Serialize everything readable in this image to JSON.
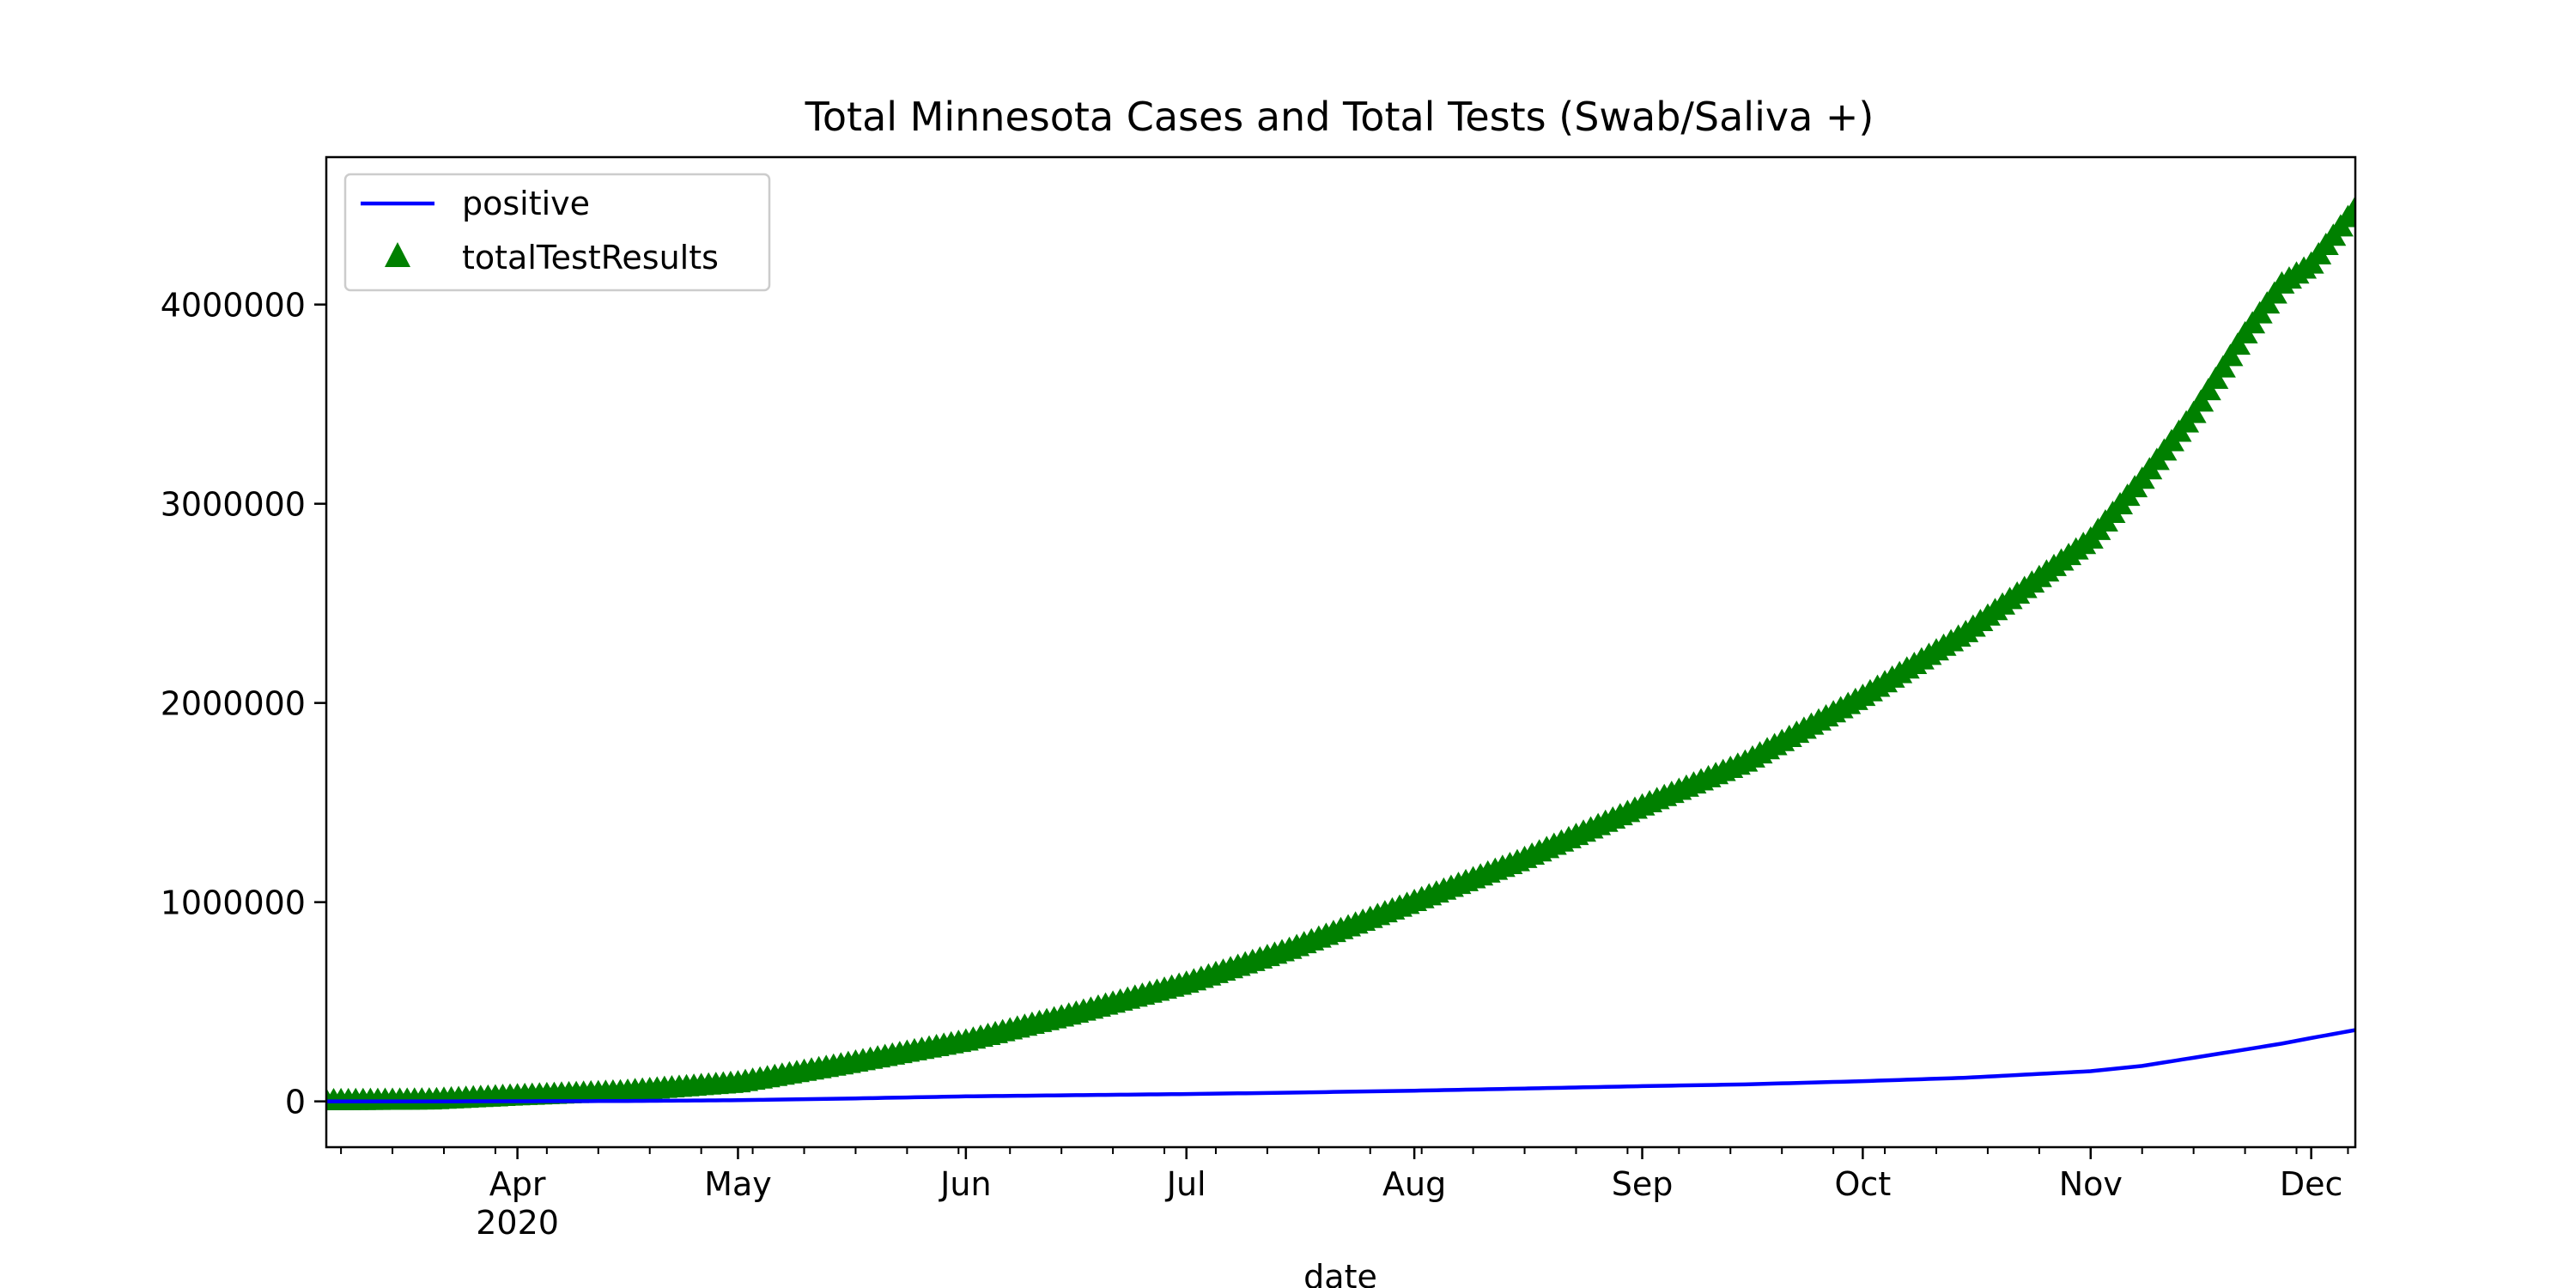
{
  "chart_data": {
    "type": "line",
    "title": "Total Minnesota Cases and Total Tests (Swab/Saliva +)",
    "xlabel": "date",
    "ylabel": "",
    "x_range": [
      "2020-03-06",
      "2020-12-07"
    ],
    "ylim": [
      -230000,
      4740000
    ],
    "x_ticks": [
      {
        "date": "2020-04-01",
        "label": "Apr",
        "sublabel": "2020"
      },
      {
        "date": "2020-05-01",
        "label": "May",
        "sublabel": ""
      },
      {
        "date": "2020-06-01",
        "label": "Jun",
        "sublabel": ""
      },
      {
        "date": "2020-07-01",
        "label": "Jul",
        "sublabel": ""
      },
      {
        "date": "2020-08-01",
        "label": "Aug",
        "sublabel": ""
      },
      {
        "date": "2020-09-01",
        "label": "Sep",
        "sublabel": ""
      },
      {
        "date": "2020-10-01",
        "label": "Oct",
        "sublabel": ""
      },
      {
        "date": "2020-11-01",
        "label": "Nov",
        "sublabel": ""
      },
      {
        "date": "2020-12-01",
        "label": "Dec",
        "sublabel": ""
      }
    ],
    "y_ticks": [
      {
        "value": 0,
        "label": "0"
      },
      {
        "value": 1000000,
        "label": "1000000"
      },
      {
        "value": 2000000,
        "label": "2000000"
      },
      {
        "value": 3000000,
        "label": "3000000"
      },
      {
        "value": 4000000,
        "label": "4000000"
      }
    ],
    "grid": false,
    "legend_position": "top-left",
    "series": [
      {
        "name": "positive",
        "style": "line",
        "color": "#0000ff",
        "points": [
          [
            "2020-03-06",
            1
          ],
          [
            "2020-03-20",
            115
          ],
          [
            "2020-04-01",
            689
          ],
          [
            "2020-04-15",
            1695
          ],
          [
            "2020-05-01",
            5730
          ],
          [
            "2020-05-15",
            13435
          ],
          [
            "2020-06-01",
            25208
          ],
          [
            "2020-06-15",
            30693
          ],
          [
            "2020-07-01",
            36716
          ],
          [
            "2020-07-15",
            43742
          ],
          [
            "2020-08-01",
            53692
          ],
          [
            "2020-08-15",
            63723
          ],
          [
            "2020-09-01",
            76355
          ],
          [
            "2020-09-15",
            85351
          ],
          [
            "2020-10-01",
            101366
          ],
          [
            "2020-10-15",
            118592
          ],
          [
            "2020-11-01",
            151422
          ],
          [
            "2020-11-08",
            178000
          ],
          [
            "2020-11-15",
            219000
          ],
          [
            "2020-11-22",
            260000
          ],
          [
            "2020-11-27",
            290000
          ],
          [
            "2020-12-01",
            318000
          ],
          [
            "2020-12-07",
            358000
          ]
        ]
      },
      {
        "name": "totalTestResults",
        "style": "triangle-markers",
        "color": "#008000",
        "points": [
          [
            "2020-03-06",
            0
          ],
          [
            "2020-03-20",
            4000
          ],
          [
            "2020-04-01",
            25000
          ],
          [
            "2020-04-15",
            45000
          ],
          [
            "2020-05-01",
            90000
          ],
          [
            "2020-05-15",
            180000
          ],
          [
            "2020-06-01",
            300000
          ],
          [
            "2020-06-15",
            430000
          ],
          [
            "2020-07-01",
            590000
          ],
          [
            "2020-07-15",
            760000
          ],
          [
            "2020-08-01",
            1000000
          ],
          [
            "2020-08-15",
            1200000
          ],
          [
            "2020-09-01",
            1480000
          ],
          [
            "2020-09-15",
            1700000
          ],
          [
            "2020-10-01",
            2030000
          ],
          [
            "2020-10-15",
            2350000
          ],
          [
            "2020-11-01",
            2820000
          ],
          [
            "2020-11-08",
            3120000
          ],
          [
            "2020-11-15",
            3450000
          ],
          [
            "2020-11-22",
            3850000
          ],
          [
            "2020-11-27",
            4100000
          ],
          [
            "2020-12-01",
            4200000
          ],
          [
            "2020-12-07",
            4480000
          ]
        ]
      }
    ]
  }
}
